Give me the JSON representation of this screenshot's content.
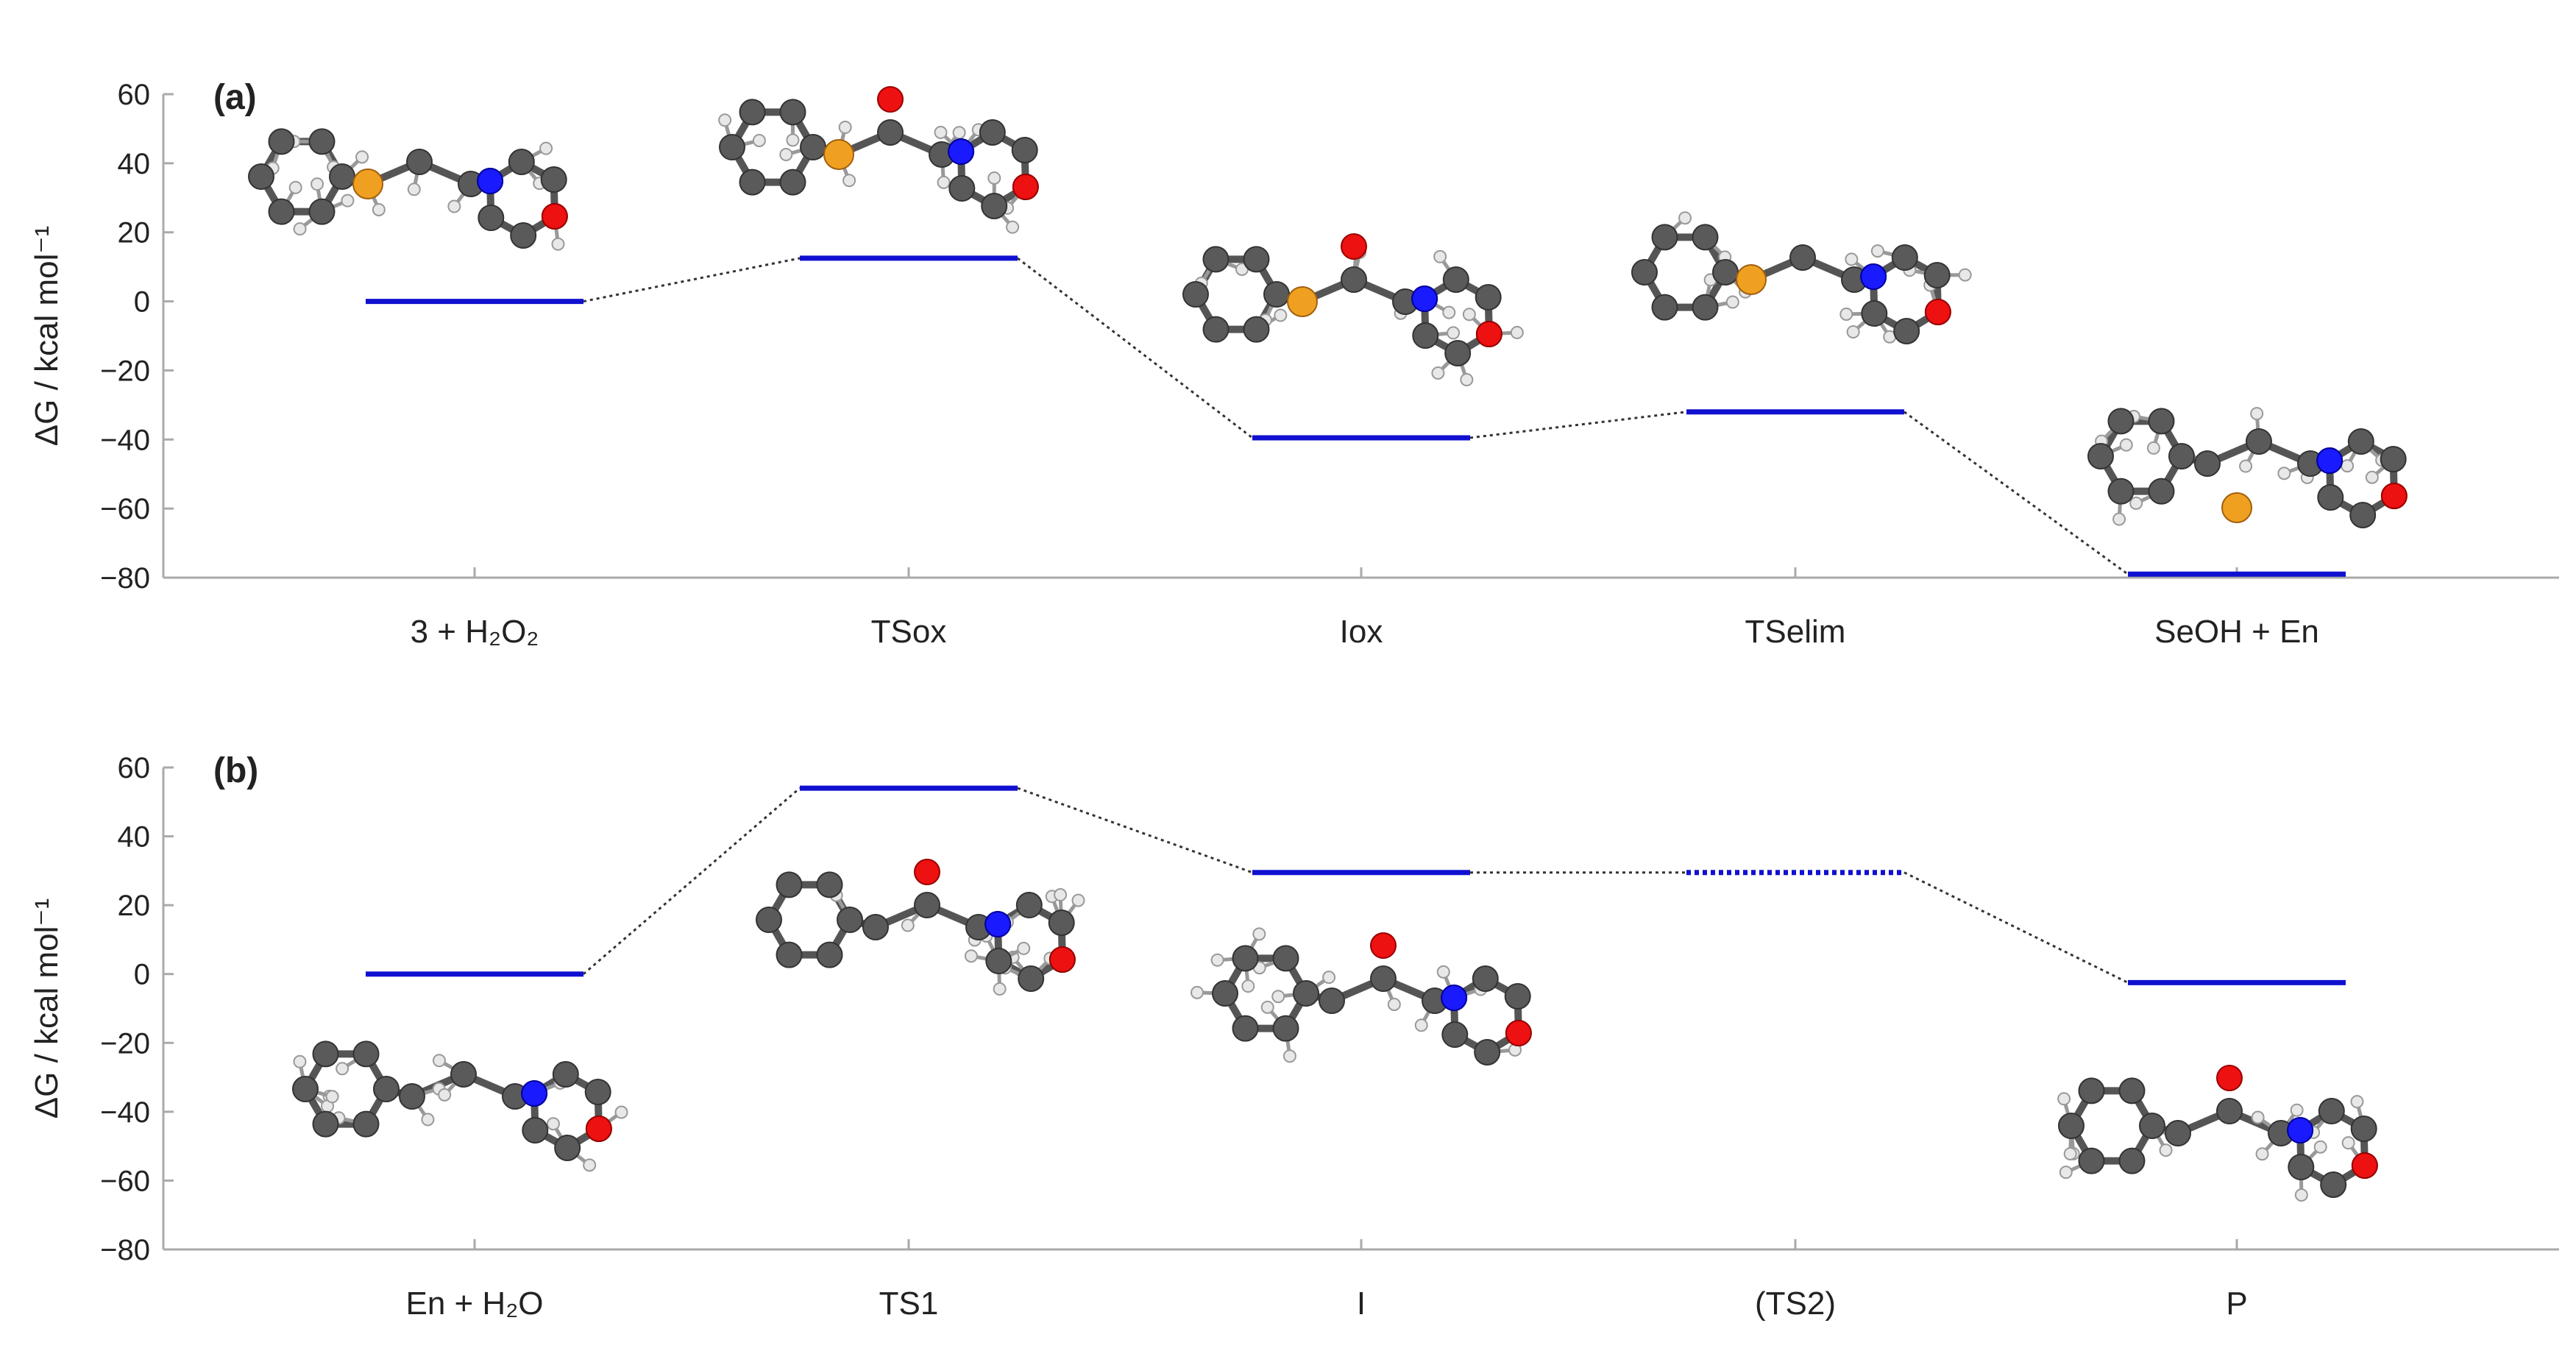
{
  "chart_data": [
    {
      "panel_label": "(a)",
      "type": "energy_profile",
      "ylabel": "ΔG / kcal mol⁻¹",
      "ylim": [
        -80,
        60
      ],
      "yticks": [
        "60",
        "40",
        "20",
        "0",
        "−20",
        "−40",
        "−60",
        "−80"
      ],
      "ytick_values": [
        60,
        40,
        20,
        0,
        -20,
        -40,
        -60,
        -80
      ],
      "categories": [
        "3 + H₂O₂",
        "TSox",
        "Iox",
        "TSelim",
        "SeOH + En"
      ],
      "values": [
        0,
        12.5,
        -39.5,
        -32,
        -79
      ],
      "level_style": [
        "solid",
        "solid",
        "solid",
        "solid",
        "solid"
      ],
      "level_color": "#1010d0",
      "connector_color": "#333333"
    },
    {
      "panel_label": "(b)",
      "type": "energy_profile",
      "ylabel": "ΔG / kcal mol⁻¹",
      "ylim": [
        -80,
        60
      ],
      "yticks": [
        "60",
        "40",
        "20",
        "0",
        "−20",
        "−40",
        "−60",
        "−80"
      ],
      "ytick_values": [
        60,
        40,
        20,
        0,
        -20,
        -40,
        -60,
        -80
      ],
      "categories": [
        "En + H₂O",
        "TS1",
        "I",
        "(TS2)",
        "P"
      ],
      "values": [
        0,
        54,
        29.5,
        29.5,
        -2.5
      ],
      "level_style": [
        "solid",
        "solid",
        "solid",
        "dotted",
        "solid"
      ],
      "level_color": "#1010d0",
      "connector_color": "#333333"
    }
  ]
}
